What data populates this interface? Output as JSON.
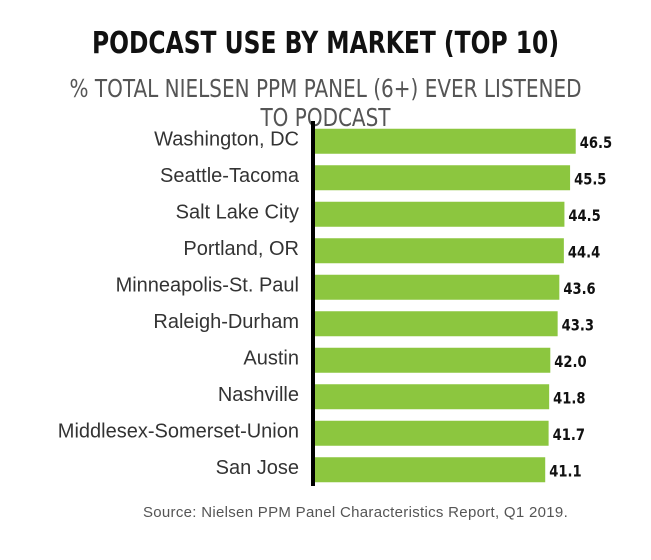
{
  "chart_data": {
    "type": "bar",
    "orientation": "horizontal",
    "title": "PODCAST USE BY MARKET (TOP 10)",
    "subtitle": "% TOTAL NIELSEN PPM PANEL (6+) EVER LISTENED TO PODCAST",
    "categories": [
      "Washington, DC",
      "Seattle-Tacoma",
      "Salt Lake City",
      "Portland, OR",
      "Minneapolis-St. Paul",
      "Raleigh-Durham",
      "Austin",
      "Nashville",
      "Middlesex-Somerset-Union",
      "San Jose"
    ],
    "values": [
      46.5,
      45.5,
      44.5,
      44.4,
      43.6,
      43.3,
      42.0,
      41.8,
      41.7,
      41.1
    ],
    "value_labels": [
      "46.5",
      "45.5",
      "44.5",
      "44.4",
      "43.6",
      "43.3",
      "42.0",
      "41.8",
      "41.7",
      "41.1"
    ],
    "bar_color": "#8cc63f",
    "grid": false,
    "source": "Source: Nielsen PPM Panel Characteristics Report, Q1 2019."
  }
}
